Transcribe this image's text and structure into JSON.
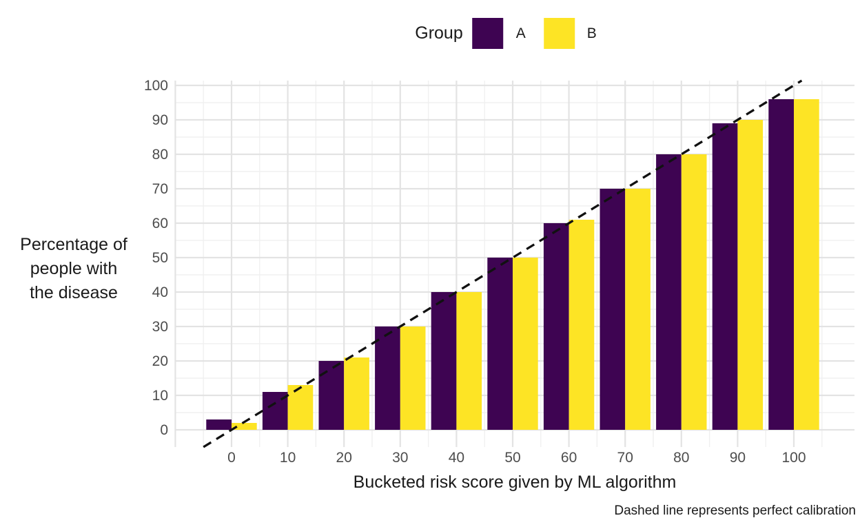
{
  "caption": "Dashed line represents perfect calibration",
  "legend": {
    "title": "Group",
    "items": [
      {
        "label": "A",
        "color": "#3E0452"
      },
      {
        "label": "B",
        "color": "#FDE425"
      }
    ]
  },
  "chart_data": {
    "type": "bar",
    "title": "",
    "categories": [
      0,
      10,
      20,
      30,
      40,
      50,
      60,
      70,
      80,
      90,
      100
    ],
    "series": [
      {
        "name": "A",
        "color": "#3E0452",
        "values": [
          3,
          11,
          20,
          30,
          40,
          50,
          60,
          70,
          80,
          89,
          96
        ]
      },
      {
        "name": "B",
        "color": "#FDE425",
        "values": [
          2,
          13,
          21,
          30,
          40,
          50,
          61,
          70,
          80,
          90,
          96
        ]
      }
    ],
    "xlabel": "Bucketed risk score given by ML algorithm",
    "ylabel": "Percentage of\npeople with\nthe disease",
    "x_ticks": [
      0,
      10,
      20,
      30,
      40,
      50,
      60,
      70,
      80,
      90,
      100
    ],
    "y_ticks": [
      0,
      10,
      20,
      30,
      40,
      50,
      60,
      70,
      80,
      90,
      100
    ],
    "ylim": [
      -5.2,
      101.4
    ],
    "xlim": [
      -10,
      110.8
    ],
    "grid": "major-and-minor, light gray on white",
    "legend_position": "top-center",
    "reference_line": {
      "type": "abline",
      "slope": 1,
      "intercept": 0,
      "style": "dashed",
      "color": "#111111",
      "meaning": "perfect calibration"
    },
    "colors": {
      "grid_major": "#E3E3E3",
      "grid_minor": "#F0F0F0",
      "tick_label": "#4d4d4d",
      "axis_title": "#1a1a1a"
    }
  }
}
